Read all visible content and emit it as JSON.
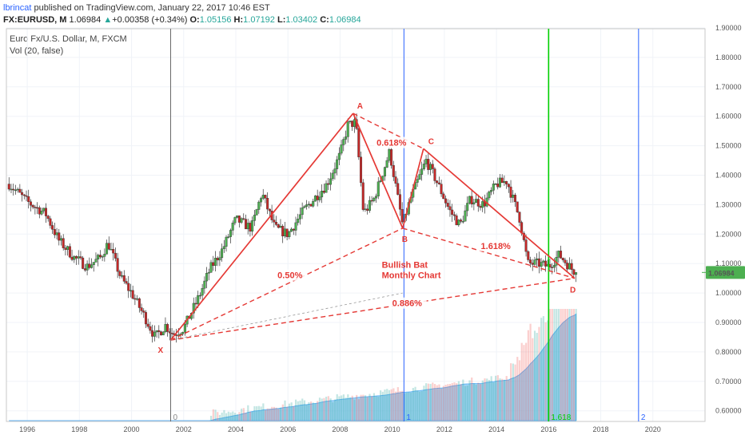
{
  "header": {
    "author": "lbrincat",
    "text": " published on TradingView.com, January 22, 2017 10:46 EST"
  },
  "ticker": {
    "symbol": "FX:EURUSD, M",
    "last": "1.06984",
    "arrow": "▲",
    "change": "+0.00358 (+0.34%)",
    "o_label": "O:",
    "o": "1.05156",
    "h_label": "H:",
    "h": "1.07192",
    "l_label": "L:",
    "l": "1.03402",
    "c_label": "C:",
    "c": "1.06984"
  },
  "legend": {
    "title": "Euro Fx/U.S. Dollar, M, FXCM",
    "volume": "Vol (20, false)"
  },
  "colors": {
    "up": "#26a69a",
    "down": "#ef5350",
    "pattern": "#e53935",
    "fib_green": "#00d000",
    "fib_blue": "#2962ff",
    "volume_area": "#81c6f0",
    "last_price_bg": "#4caf50"
  },
  "chart_data": {
    "type": "candlestick",
    "x_ticks": [
      "1996",
      "1998",
      "2000",
      "2002",
      "2004",
      "2006",
      "2008",
      "2010",
      "2012",
      "2014",
      "2016",
      "2018",
      "2020"
    ],
    "y_ticks": [
      "1.90000",
      "1.80000",
      "1.70000",
      "1.60000",
      "1.50000",
      "1.40000",
      "1.30000",
      "1.20000",
      "1.10000",
      "1.00000",
      "0.90000",
      "0.80000",
      "0.70000",
      "0.60000"
    ],
    "ylim": [
      0.55,
      1.9
    ],
    "xlim": [
      1995.2,
      2022.0
    ],
    "last_price_label": "1.06984",
    "last_price": 1.06984,
    "series_path": [
      [
        1995.3,
        1.37
      ],
      [
        1996.0,
        1.31
      ],
      [
        1996.7,
        1.27
      ],
      [
        1997.2,
        1.18
      ],
      [
        1997.8,
        1.12
      ],
      [
        1998.3,
        1.09
      ],
      [
        1998.8,
        1.12
      ],
      [
        1999.1,
        1.17
      ],
      [
        1999.6,
        1.05
      ],
      [
        2000.0,
        1.0
      ],
      [
        2000.5,
        0.92
      ],
      [
        2000.9,
        0.85
      ],
      [
        2001.3,
        0.89
      ],
      [
        2001.6,
        0.86
      ],
      [
        2002.0,
        0.88
      ],
      [
        2002.6,
        0.99
      ],
      [
        2003.0,
        1.08
      ],
      [
        2003.5,
        1.15
      ],
      [
        2004.0,
        1.25
      ],
      [
        2004.6,
        1.22
      ],
      [
        2005.0,
        1.34
      ],
      [
        2005.5,
        1.22
      ],
      [
        2006.0,
        1.2
      ],
      [
        2006.6,
        1.28
      ],
      [
        2007.0,
        1.32
      ],
      [
        2007.5,
        1.37
      ],
      [
        2008.0,
        1.47
      ],
      [
        2008.3,
        1.57
      ],
      [
        2008.6,
        1.58
      ],
      [
        2008.9,
        1.27
      ],
      [
        2009.3,
        1.32
      ],
      [
        2009.9,
        1.48
      ],
      [
        2010.4,
        1.23
      ],
      [
        2010.7,
        1.32
      ],
      [
        2011.3,
        1.45
      ],
      [
        2011.7,
        1.38
      ],
      [
        2012.2,
        1.28
      ],
      [
        2012.6,
        1.23
      ],
      [
        2013.0,
        1.32
      ],
      [
        2013.5,
        1.3
      ],
      [
        2014.0,
        1.37
      ],
      [
        2014.4,
        1.38
      ],
      [
        2014.9,
        1.25
      ],
      [
        2015.2,
        1.1
      ],
      [
        2015.6,
        1.1
      ],
      [
        2016.0,
        1.09
      ],
      [
        2016.4,
        1.13
      ],
      [
        2016.9,
        1.08
      ],
      [
        2017.05,
        1.07
      ]
    ],
    "pattern": {
      "name": "Bullish Bat Monthly Chart",
      "points": [
        {
          "label": "X",
          "x": 2001.5,
          "y": 0.84
        },
        {
          "label": "A",
          "x": 2008.5,
          "y": 1.61
        },
        {
          "label": "B",
          "x": 2010.4,
          "y": 1.22
        },
        {
          "label": "C",
          "x": 2011.2,
          "y": 1.49
        },
        {
          "label": "D",
          "x": 2017.0,
          "y": 1.05
        }
      ],
      "ratios": [
        {
          "label": "0.618%",
          "between": "XA-AB"
        },
        {
          "label": "0.50%",
          "between": "XB"
        },
        {
          "label": "1.618%",
          "between": "BC-CD"
        },
        {
          "label": "0.886%",
          "between": "XD"
        }
      ]
    },
    "fib_time_lines": [
      {
        "label": "0",
        "x": 2001.5
      },
      {
        "label": "1",
        "x": 2010.45
      },
      {
        "label": "1.618",
        "x": 2016.0
      },
      {
        "label": "2",
        "x": 2019.45
      }
    ]
  }
}
